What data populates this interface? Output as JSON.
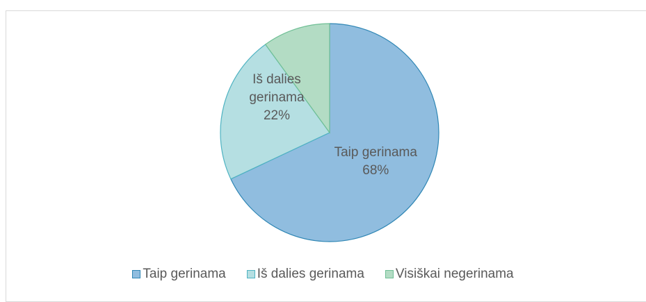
{
  "chart_data": {
    "type": "pie",
    "categories": [
      "Taip gerinama",
      "Iš dalies gerinama",
      "Visiškai negerinama"
    ],
    "values": [
      68,
      22,
      10
    ],
    "value_labels": [
      "68%",
      "22%",
      null
    ],
    "colors": [
      "#90bddf",
      "#b5dfe2",
      "#b3dcc4"
    ],
    "strokes": [
      "#2f86b4",
      "#4fb3c2",
      "#6fbf95"
    ],
    "legend": "bottom"
  }
}
